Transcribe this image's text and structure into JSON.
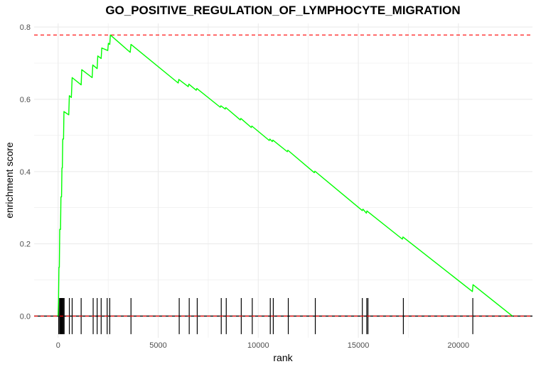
{
  "chart_data": {
    "type": "line",
    "title": "GO_POSITIVE_REGULATION_OF_LYMPHOCYTE_MIGRATION",
    "xlabel": "rank",
    "ylabel": "enrichment score",
    "xlim": [
      -1200,
      23700
    ],
    "ylim": [
      -0.06,
      0.81
    ],
    "x_ticks": [
      0,
      5000,
      10000,
      15000,
      20000
    ],
    "x_tick_labels": [
      "0",
      "5000",
      "10000",
      "15000",
      "20000"
    ],
    "y_ticks": [
      0.0,
      0.2,
      0.4,
      0.6,
      0.8
    ],
    "y_tick_labels": [
      "0.0",
      "0.2",
      "0.4",
      "0.6",
      "0.8"
    ],
    "grid": true,
    "colors": {
      "curve": "#00ff00",
      "max_line": "#ff0000",
      "zero_line": "#ff0000",
      "hits": "#000000",
      "grid": "#ebebeb"
    },
    "max_es": 0.778,
    "series": [
      {
        "values": [
          [
            0,
            0.0
          ],
          [
            20,
            0.045
          ],
          [
            40,
            0.135
          ],
          [
            60,
            0.135
          ],
          [
            80,
            0.24
          ],
          [
            120,
            0.24
          ],
          [
            140,
            0.33
          ],
          [
            170,
            0.33
          ],
          [
            190,
            0.41
          ],
          [
            210,
            0.41
          ],
          [
            230,
            0.49
          ],
          [
            270,
            0.49
          ],
          [
            290,
            0.566
          ],
          [
            530,
            0.557
          ],
          [
            560,
            0.61
          ],
          [
            660,
            0.605
          ],
          [
            700,
            0.66
          ],
          [
            1150,
            0.64
          ],
          [
            1180,
            0.682
          ],
          [
            1700,
            0.66
          ],
          [
            1730,
            0.695
          ],
          [
            1950,
            0.685
          ],
          [
            1980,
            0.72
          ],
          [
            2150,
            0.713
          ],
          [
            2180,
            0.742
          ],
          [
            2480,
            0.735
          ],
          [
            2510,
            0.755
          ],
          [
            2580,
            0.752
          ],
          [
            2610,
            0.778
          ],
          [
            3600,
            0.73
          ],
          [
            3640,
            0.752
          ],
          [
            6000,
            0.645
          ],
          [
            6030,
            0.655
          ],
          [
            6500,
            0.635
          ],
          [
            6530,
            0.642
          ],
          [
            6900,
            0.625
          ],
          [
            6930,
            0.63
          ],
          [
            8100,
            0.578
          ],
          [
            8130,
            0.582
          ],
          [
            8350,
            0.573
          ],
          [
            8380,
            0.577
          ],
          [
            9100,
            0.543
          ],
          [
            9130,
            0.547
          ],
          [
            9650,
            0.522
          ],
          [
            9680,
            0.526
          ],
          [
            10550,
            0.486
          ],
          [
            10580,
            0.49
          ],
          [
            10700,
            0.483
          ],
          [
            10730,
            0.487
          ],
          [
            11450,
            0.455
          ],
          [
            11480,
            0.459
          ],
          [
            12800,
            0.397
          ],
          [
            12830,
            0.401
          ],
          [
            15200,
            0.292
          ],
          [
            15230,
            0.296
          ],
          [
            15400,
            0.285
          ],
          [
            15430,
            0.291
          ],
          [
            17200,
            0.213
          ],
          [
            17230,
            0.219
          ],
          [
            20700,
            0.068
          ],
          [
            20730,
            0.087
          ],
          [
            22700,
            0.0
          ]
        ]
      }
    ],
    "hits": [
      30,
      80,
      120,
      150,
      180,
      220,
      260,
      300,
      560,
      700,
      1150,
      1750,
      1950,
      2150,
      2450,
      2580,
      3640,
      6050,
      6550,
      6950,
      8150,
      8400,
      9150,
      9700,
      10600,
      10750,
      11500,
      12850,
      15200,
      15420,
      15480,
      17250,
      20720
    ],
    "hit_band": [
      -0.05,
      0.05
    ]
  }
}
